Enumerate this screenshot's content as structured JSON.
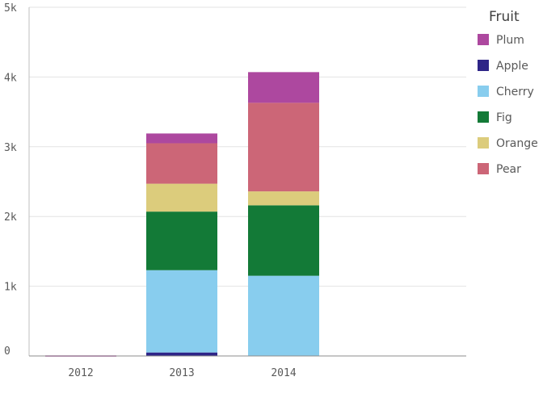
{
  "chart_data": {
    "type": "bar",
    "stacked": true,
    "categories": [
      "2012",
      "2013",
      "2014"
    ],
    "y_ticks": [
      "0",
      "1k",
      "2k",
      "3k",
      "4k",
      "5k"
    ],
    "ylim": [
      0,
      5000
    ],
    "grid": true,
    "legend": {
      "title": "Fruit",
      "position": "right",
      "items": [
        "Plum",
        "Apple",
        "Cherry",
        "Fig",
        "Orange",
        "Pear"
      ]
    },
    "stack_order": [
      "Apple",
      "Cherry",
      "Fig",
      "Orange",
      "Pear",
      "Plum"
    ],
    "series": [
      {
        "name": "Plum",
        "color": "#ad489f",
        "values": [
          8,
          140,
          440
        ]
      },
      {
        "name": "Apple",
        "color": "#2e2587",
        "values": [
          0,
          50,
          0
        ]
      },
      {
        "name": "Cherry",
        "color": "#88cdee",
        "values": [
          0,
          1180,
          1150
        ]
      },
      {
        "name": "Fig",
        "color": "#137a37",
        "values": [
          0,
          840,
          1010
        ]
      },
      {
        "name": "Orange",
        "color": "#dccc7c",
        "values": [
          0,
          400,
          200
        ]
      },
      {
        "name": "Pear",
        "color": "#cc6677",
        "values": [
          0,
          580,
          1270
        ]
      }
    ]
  }
}
